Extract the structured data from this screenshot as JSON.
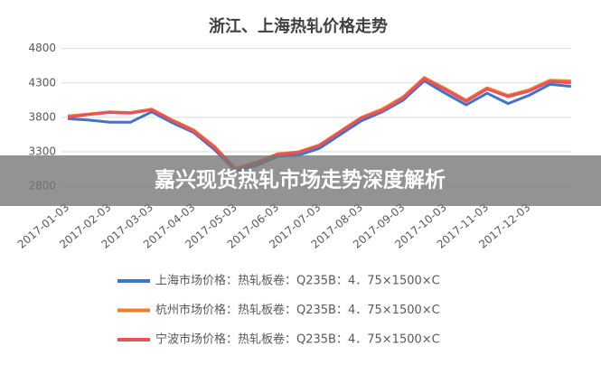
{
  "chart_data": {
    "type": "line",
    "title": "浙江、上海热轧价格走势",
    "categories": [
      "2017-01-03",
      null,
      "2017-02-03",
      null,
      "2017-03-03",
      null,
      "2017-04-03",
      null,
      "2017-05-03",
      null,
      "2017-06-03",
      null,
      "2017-07-03",
      null,
      "2017-08-03",
      null,
      "2017-09-03",
      null,
      "2017-10-03",
      null,
      "2017-11-03",
      null,
      "2017-12-03",
      null,
      null
    ],
    "series": [
      {
        "name": "上海市场价格：热轧板卷：Q235B：4．75×1500×C",
        "color": "#4472c4",
        "values": [
          3780,
          3760,
          3730,
          3730,
          3880,
          3720,
          3580,
          3330,
          3020,
          3100,
          3230,
          3250,
          3350,
          3550,
          3750,
          3880,
          4050,
          4330,
          4150,
          3980,
          4150,
          4000,
          4120,
          4280,
          4250
        ]
      },
      {
        "name": "杭州市场价格：热轧板卷：Q235B：4．75×1500×C",
        "color": "#ed7d31",
        "values": [
          3820,
          3850,
          3880,
          3870,
          3920,
          3760,
          3620,
          3380,
          3060,
          3150,
          3270,
          3300,
          3400,
          3600,
          3800,
          3920,
          4100,
          4380,
          4220,
          4050,
          4230,
          4120,
          4200,
          4340,
          4330
        ]
      },
      {
        "name": "宁波市场价格：热轧板卷：Q235B：4．75×1500×C",
        "color": "#e8525a",
        "values": [
          3800,
          3840,
          3870,
          3860,
          3910,
          3750,
          3600,
          3360,
          3050,
          3140,
          3260,
          3290,
          3390,
          3590,
          3790,
          3900,
          4080,
          4360,
          4200,
          4030,
          4210,
          4100,
          4180,
          4320,
          4300
        ]
      }
    ],
    "ylim": [
      2500,
      4900
    ],
    "yticks": [
      2800,
      3300,
      3800,
      4300,
      4800
    ],
    "grid": true
  },
  "banner": {
    "title": "嘉兴现货热轧市场走势深度解析"
  }
}
